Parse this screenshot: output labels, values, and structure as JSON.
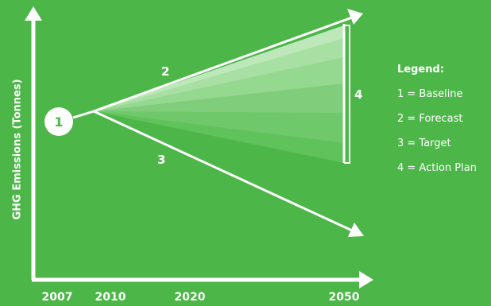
{
  "colors": {
    "background": "#4db649",
    "foreground": "#ffffff"
  },
  "axes": {
    "y_label": "GHG Emissions (Tonnes)",
    "x_ticks": [
      "2007",
      "2010",
      "2020",
      "2050"
    ]
  },
  "markers": {
    "baseline": "1",
    "forecast": "2",
    "target": "3",
    "action_plan": "4"
  },
  "legend": {
    "title": "Legend:",
    "items": [
      "1 = Baseline",
      "2 = Forecast",
      "3 = Target",
      "4 = Action Plan"
    ]
  }
}
